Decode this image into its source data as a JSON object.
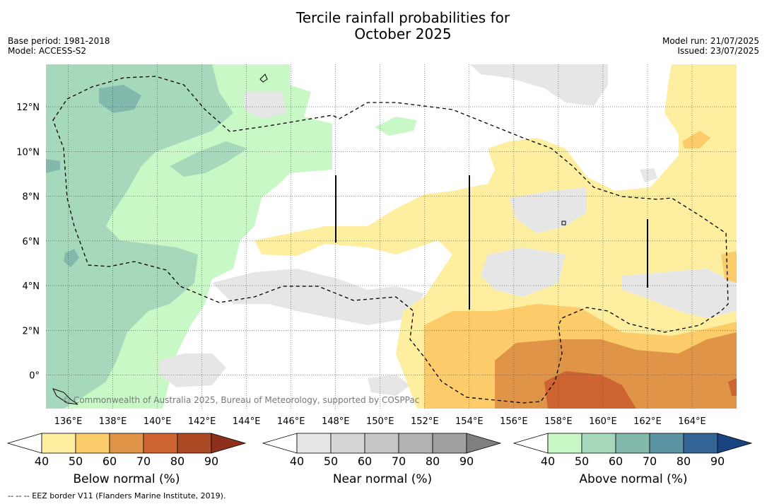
{
  "title_line1": "Tercile rainfall probabilities for",
  "title_line2": "October 2025",
  "meta_left": {
    "base_period": "Base period: 1981-2018",
    "model": "Model: ACCESS-S2"
  },
  "meta_right": {
    "model_run": "Model run: 21/07/2025",
    "issued": "Issued: 23/07/2025"
  },
  "copyright": "© Commonwealth of Australia 2025, Bureau of Meteorology, supported by COSPPac",
  "footer": "-- -- -- EEZ border V11 (Flanders Marine Institute, 2019).",
  "map": {
    "lon_labels": [
      "136°E",
      "138°E",
      "140°E",
      "142°E",
      "144°E",
      "146°E",
      "148°E",
      "150°E",
      "152°E",
      "154°E",
      "156°E",
      "158°E",
      "160°E",
      "162°E",
      "164°E"
    ],
    "lat_labels": [
      "12°N",
      "10°N",
      "8°N",
      "6°N",
      "4°N",
      "2°N",
      "0°"
    ],
    "lon_range": [
      135,
      166
    ],
    "lat_range": [
      -1.5,
      13.9
    ]
  },
  "colorbars": [
    {
      "title": "Below normal (%)",
      "ticks": [
        "40",
        "50",
        "60",
        "70",
        "80",
        "90"
      ],
      "colors": [
        "#ffffff",
        "#fdeea0",
        "#fccc6a",
        "#e09448",
        "#cd6432",
        "#ad4a26",
        "#8e2f1d"
      ]
    },
    {
      "title": "Near normal (%)",
      "ticks": [
        "40",
        "50",
        "60",
        "70",
        "80",
        "90"
      ],
      "colors": [
        "#ffffff",
        "#e6e6e6",
        "#d6d6d6",
        "#c6c6c6",
        "#b2b2b2",
        "#a0a0a0",
        "#7f7f7f"
      ]
    },
    {
      "title": "Above normal (%)",
      "ticks": [
        "40",
        "50",
        "60",
        "70",
        "80",
        "90"
      ],
      "colors": [
        "#ffffff",
        "#c9f8c7",
        "#a6d9bb",
        "#83b9ac",
        "#5d94a4",
        "#346396",
        "#1a4381"
      ]
    }
  ]
}
